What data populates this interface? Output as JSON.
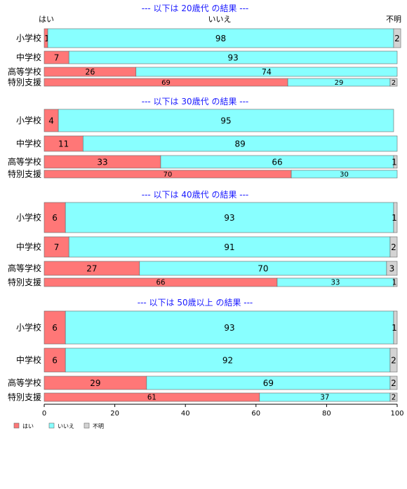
{
  "chart_data": {
    "type": "bar",
    "orientation": "horizontal",
    "stacked": true,
    "column_labels": [
      "はい",
      "いいえ",
      "不明"
    ],
    "colors": {
      "yes": "#ff7777",
      "no": "#88ffff",
      "unknown": "#d3d3d3",
      "title": "#1a1aff"
    },
    "xlim": [
      0,
      100
    ],
    "x_ticks": [
      "0",
      "20",
      "40",
      "60",
      "80",
      "100"
    ],
    "legend": {
      "placement": "bottom-left",
      "entries": [
        "はい",
        "いいえ",
        "不明"
      ]
    },
    "groups": [
      {
        "title": "--- 以下は 20歳代 の結果 ---",
        "rows": [
          {
            "label": "小学校",
            "values": [
              1,
              98,
              2
            ]
          },
          {
            "label": "中学校",
            "values": [
              7,
              93,
              0
            ]
          },
          {
            "label": "高等学校",
            "values": [
              26,
              74,
              0
            ]
          },
          {
            "label": "特別支援",
            "values": [
              69,
              29,
              2
            ]
          }
        ]
      },
      {
        "title": "--- 以下は 30歳代 の結果 ---",
        "rows": [
          {
            "label": "小学校",
            "values": [
              4,
              95,
              0
            ]
          },
          {
            "label": "中学校",
            "values": [
              11,
              89,
              0
            ]
          },
          {
            "label": "高等学校",
            "values": [
              33,
              66,
              1
            ]
          },
          {
            "label": "特別支援",
            "values": [
              70,
              30,
              0
            ]
          }
        ]
      },
      {
        "title": "--- 以下は 40歳代 の結果 ---",
        "rows": [
          {
            "label": "小学校",
            "values": [
              6,
              93,
              1
            ]
          },
          {
            "label": "中学校",
            "values": [
              7,
              91,
              2
            ]
          },
          {
            "label": "高等学校",
            "values": [
              27,
              70,
              3
            ]
          },
          {
            "label": "特別支援",
            "values": [
              66,
              33,
              1
            ]
          }
        ]
      },
      {
        "title": "--- 以下は 50歳以上 の結果 ---",
        "rows": [
          {
            "label": "小学校",
            "values": [
              6,
              93,
              1
            ]
          },
          {
            "label": "中学校",
            "values": [
              6,
              92,
              2
            ]
          },
          {
            "label": "高等学校",
            "values": [
              29,
              69,
              2
            ]
          },
          {
            "label": "特別支援",
            "values": [
              61,
              37,
              2
            ]
          }
        ]
      }
    ]
  }
}
